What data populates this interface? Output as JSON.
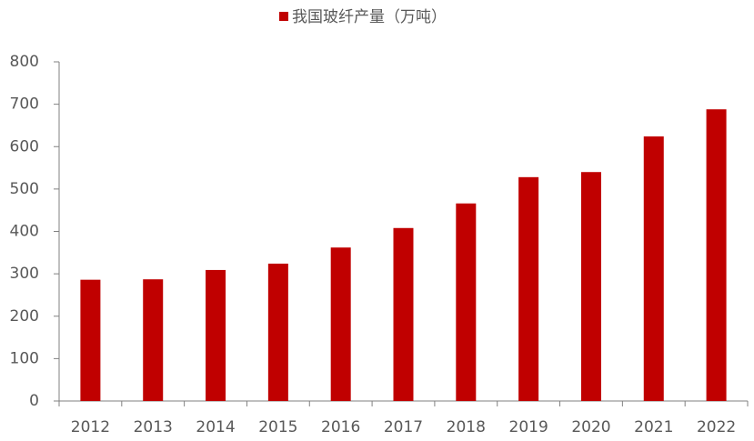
{
  "chart_data": {
    "type": "bar",
    "categories": [
      "2012",
      "2013",
      "2014",
      "2015",
      "2016",
      "2017",
      "2018",
      "2019",
      "2020",
      "2021",
      "2022"
    ],
    "series": [
      {
        "name": "我国玻纤产量（万吨）",
        "color": "#c00000",
        "values": [
          286,
          287,
          309,
          324,
          362,
          408,
          466,
          528,
          540,
          624,
          688
        ]
      }
    ],
    "ylim": [
      0,
      800
    ],
    "yticks": [
      0,
      100,
      200,
      300,
      400,
      500,
      600,
      700,
      800
    ],
    "grid": false,
    "legend": "top"
  }
}
